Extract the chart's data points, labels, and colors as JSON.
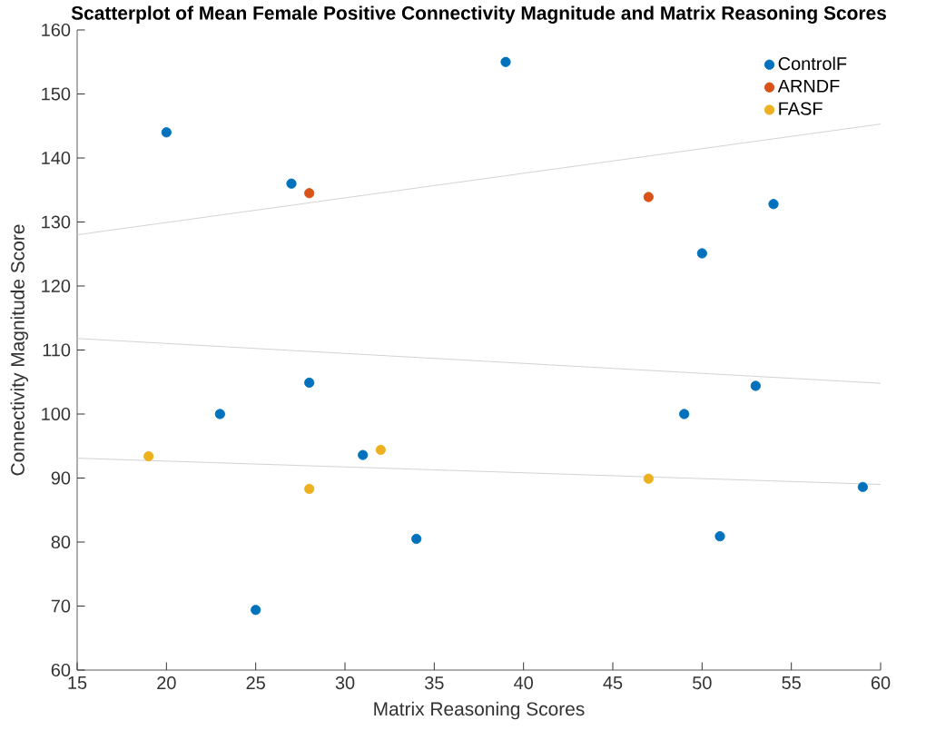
{
  "chart_data": {
    "type": "scatter",
    "title": "Scatterplot of Mean Female Positive Connectivity Magnitude and Matrix Reasoning Scores",
    "xlabel": "Matrix Reasoning Scores",
    "ylabel": "Connectivity Magnitude Score",
    "xlim": [
      15,
      60
    ],
    "xticks": [
      15,
      20,
      25,
      30,
      35,
      40,
      45,
      50,
      55,
      60
    ],
    "ylim": [
      60,
      160
    ],
    "yticks": [
      60,
      70,
      80,
      90,
      100,
      110,
      120,
      130,
      140,
      150,
      160
    ],
    "legend": "top right",
    "grid": false,
    "series": [
      {
        "name": "ControlF",
        "color": "#0072bd",
        "marker": "circle",
        "x": [
          20,
          27,
          39,
          54,
          50,
          28,
          23,
          31,
          34,
          25,
          49,
          53,
          59,
          51
        ],
        "values": [
          144,
          136,
          155,
          132.8,
          125.1,
          104.9,
          100,
          93.6,
          80.5,
          69.4,
          100,
          104.4,
          88.6,
          80.9
        ]
      },
      {
        "name": "ARNDF",
        "color": "#d95319",
        "marker": "circle",
        "x": [
          28,
          47
        ],
        "values": [
          134.5,
          133.9
        ]
      },
      {
        "name": "FASF",
        "color": "#edb120",
        "marker": "circle",
        "x": [
          19,
          28,
          32,
          47
        ],
        "values": [
          93.4,
          88.3,
          94.4,
          89.9
        ]
      },
      {
        "type": "line",
        "color": "#c8c8c8",
        "marker": "none",
        "x": [
          15,
          60
        ],
        "values": [
          128,
          145.3
        ]
      },
      {
        "type": "line",
        "color": "#c8c8c8",
        "marker": "none",
        "x": [
          15,
          60
        ],
        "values": [
          111.8,
          104.8
        ]
      },
      {
        "type": "line",
        "color": "#c8c8c8",
        "marker": "none",
        "x": [
          15,
          60
        ],
        "values": [
          93.1,
          89
        ]
      }
    ]
  }
}
